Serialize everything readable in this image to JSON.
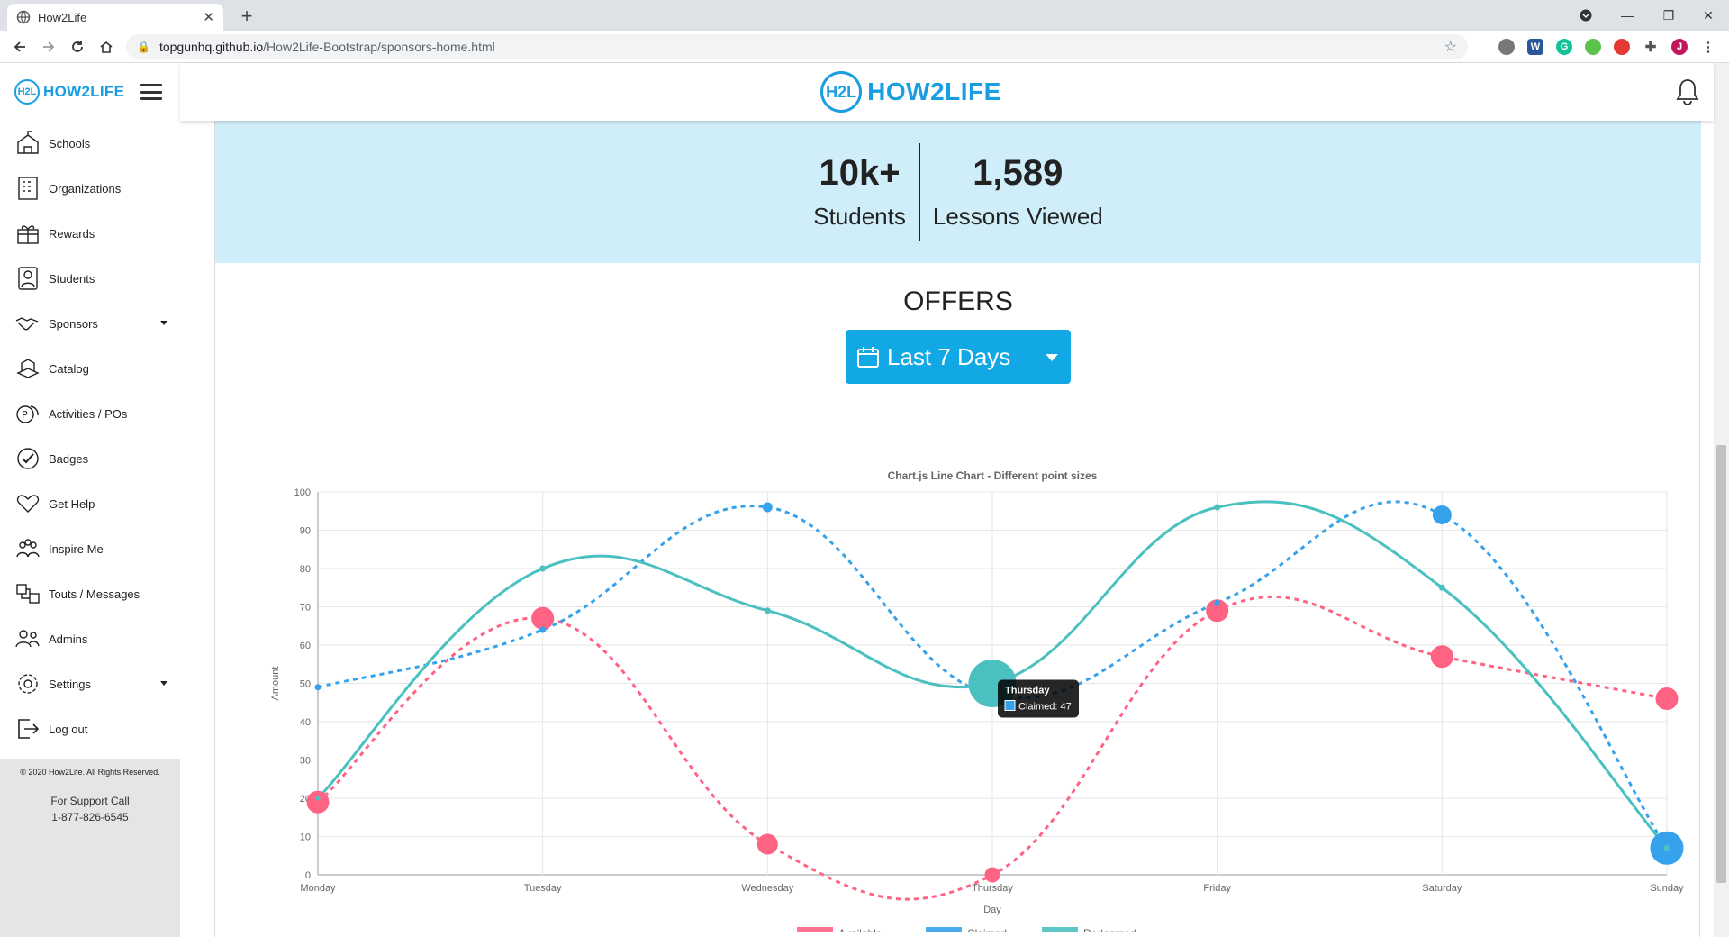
{
  "browser": {
    "tab_title": "How2Life",
    "url_host": "topgunhq.github.io",
    "url_path": "/How2Life-Bootstrap/sponsors-home.html",
    "profile_initial": "J"
  },
  "sidebar": {
    "brand_mark": "H2L",
    "brand_text": "HOW2LIFE",
    "items": [
      {
        "label": "Schools",
        "icon": "school-icon"
      },
      {
        "label": "Organizations",
        "icon": "building-icon"
      },
      {
        "label": "Rewards",
        "icon": "gift-icon"
      },
      {
        "label": "Students",
        "icon": "student-icon"
      },
      {
        "label": "Sponsors",
        "icon": "handshake-icon"
      },
      {
        "label": "Catalog",
        "icon": "catalog-icon"
      },
      {
        "label": "Activities / POs",
        "icon": "coins-icon"
      },
      {
        "label": "Badges",
        "icon": "check-badge-icon"
      },
      {
        "label": "Get Help",
        "icon": "help-hands-icon"
      },
      {
        "label": "Inspire Me",
        "icon": "people-icon"
      },
      {
        "label": "Touts / Messages",
        "icon": "messages-icon"
      },
      {
        "label": "Admins",
        "icon": "admins-icon"
      },
      {
        "label": "Settings",
        "icon": "gear-icon"
      },
      {
        "label": "Log out",
        "icon": "logout-icon"
      }
    ],
    "copyright": "© 2020 How2Life. All Rights Reserved.",
    "support_line1": "For Support Call",
    "support_line2": "1-877-826-6545"
  },
  "header": {
    "logo_mark": "H2L",
    "logo_text": "HOW2LIFE"
  },
  "stats": {
    "students_value": "10k+",
    "students_label": "Students",
    "lessons_value": "1,589",
    "lessons_label": "Lessons Viewed"
  },
  "offers": {
    "title": "OFFERS",
    "range_label": "Last 7 Days"
  },
  "chart_data": {
    "type": "line",
    "title": "Chart.js Line Chart - Different point sizes",
    "xlabel": "Day",
    "ylabel": "Amount",
    "ylim": [
      0,
      100
    ],
    "yticks": [
      0,
      10,
      20,
      30,
      40,
      50,
      60,
      70,
      80,
      90,
      100
    ],
    "categories": [
      "Monday",
      "Tuesday",
      "Wednesday",
      "Thursday",
      "Friday",
      "Saturday",
      "Sunday"
    ],
    "series": [
      {
        "name": "Available",
        "values": [
          19,
          67,
          8,
          0,
          69,
          57,
          46
        ],
        "color": "#ff6384",
        "dashed": true
      },
      {
        "name": "Claimed",
        "values": [
          49,
          64,
          96,
          47,
          71,
          94,
          7
        ],
        "color": "#36a2eb",
        "dashed": true
      },
      {
        "name": "Redeemed",
        "values": [
          20,
          80,
          69,
          50,
          96,
          75,
          7
        ],
        "color": "#4bc0c0",
        "dashed": false
      }
    ],
    "legend_position": "bottom",
    "grid": true,
    "tooltip": {
      "title": "Thursday",
      "label": "Claimed: 47"
    }
  }
}
